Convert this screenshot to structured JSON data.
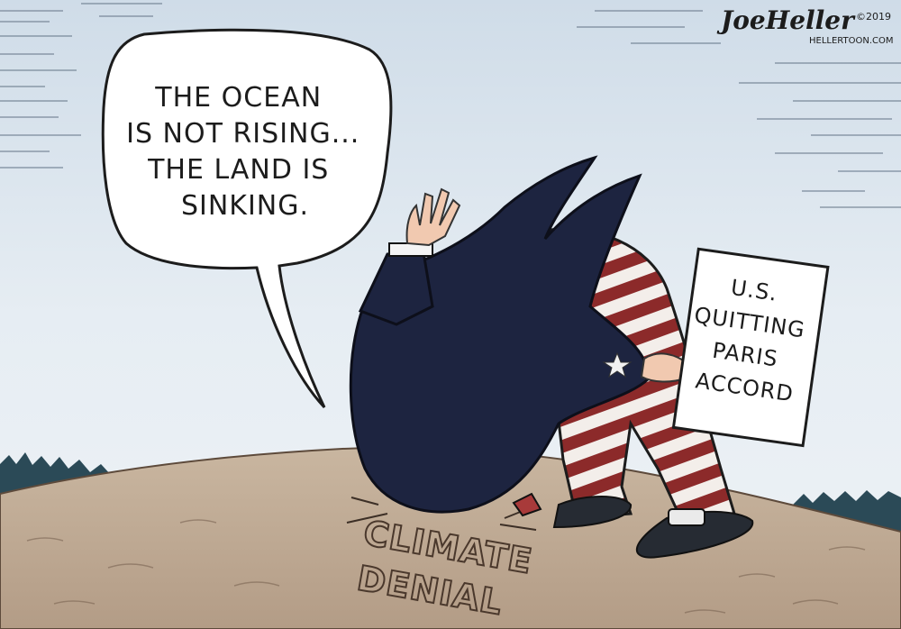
{
  "speech_bubble": {
    "lines": [
      "THE OCEAN",
      "IS NOT RISING...",
      "THE LAND IS",
      "SINKING."
    ]
  },
  "sign": {
    "lines": [
      "U.S.",
      "QUITTING",
      "PARIS",
      "ACCORD"
    ]
  },
  "ground_label": {
    "lines": [
      "CLIMATE",
      "DENIAL"
    ]
  },
  "signature": {
    "name": "JoeHeller",
    "copyright": "©2019",
    "site": "HELLERTOON.COM"
  }
}
